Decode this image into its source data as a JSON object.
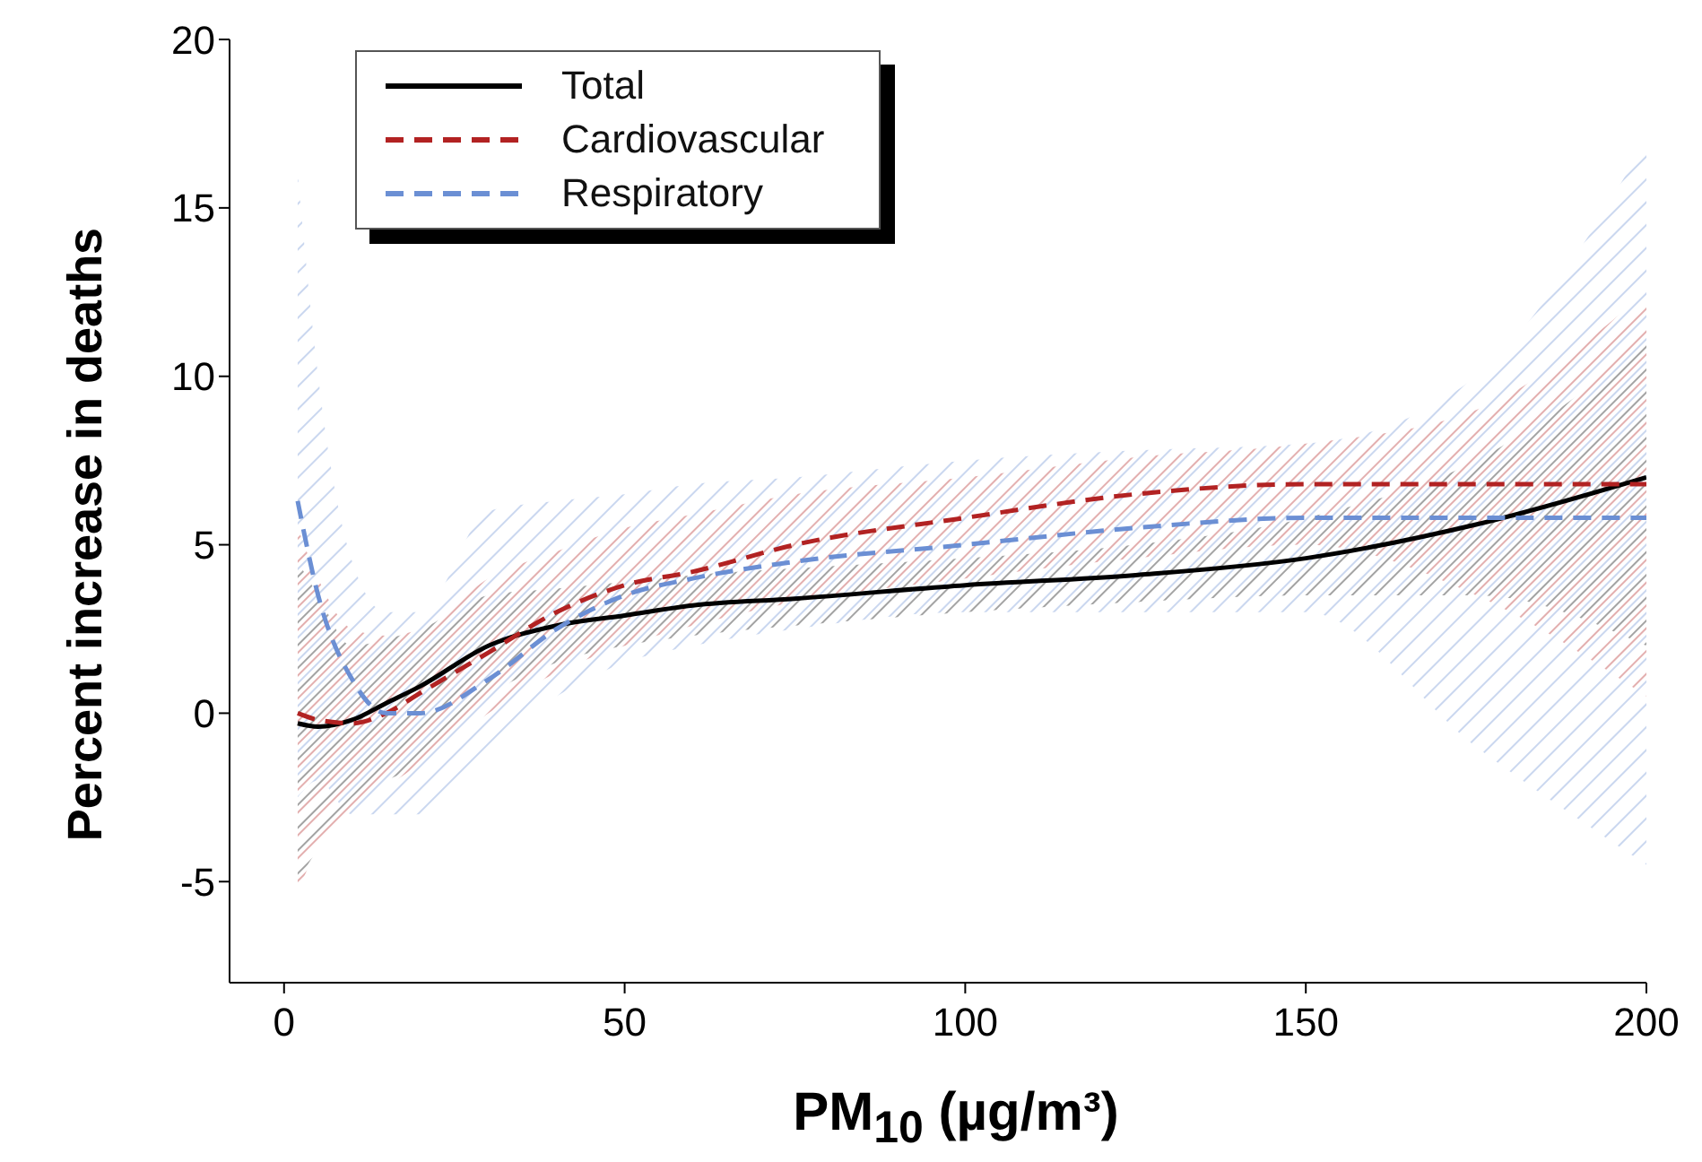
{
  "chart_data": {
    "type": "line",
    "xlabel": "PM$_{10}$ (µg/m³)",
    "ylabel": "Percent increase in deaths",
    "x": [
      2,
      5,
      10,
      15,
      20,
      30,
      40,
      50,
      60,
      75,
      100,
      125,
      150,
      175,
      200
    ],
    "series": [
      {
        "name": "Total",
        "color": "#000000",
        "line_style": "solid",
        "values": [
          -0.3,
          -0.4,
          -0.2,
          0.3,
          0.8,
          2.0,
          2.6,
          2.9,
          3.2,
          3.4,
          3.8,
          4.1,
          4.6,
          5.6,
          7.0
        ],
        "lower": [
          -5,
          -4,
          -2.5,
          -2,
          -1.5,
          0.5,
          1.5,
          2,
          2.3,
          2.6,
          3,
          3.3,
          3.5,
          3.5,
          2
        ],
        "upper": [
          4.5,
          3.5,
          2,
          2.2,
          2.5,
          3.5,
          3.7,
          3.9,
          4.1,
          4.3,
          4.6,
          5,
          5.8,
          7.5,
          11
        ]
      },
      {
        "name": "Cardiovascular",
        "color": "#b22222",
        "line_style": "dashed",
        "values": [
          0.0,
          -0.2,
          -0.3,
          0.0,
          0.6,
          1.8,
          3.0,
          3.8,
          4.2,
          5.0,
          5.8,
          6.5,
          6.8,
          6.8,
          6.8
        ],
        "lower": [
          -5.3,
          -4,
          -3,
          -2.2,
          -1.5,
          0,
          1.2,
          2,
          2.6,
          3.3,
          4,
          4.6,
          5,
          3.5,
          0.5
        ],
        "upper": [
          5.5,
          4,
          2.5,
          2.3,
          2.5,
          4,
          4.8,
          5.5,
          5.9,
          6.5,
          7,
          7.6,
          8,
          9,
          12.5
        ]
      },
      {
        "name": "Respiratory",
        "color": "#6b8fd4",
        "line_style": "dashed",
        "values": [
          6.3,
          3.5,
          1.0,
          0.0,
          0.0,
          1.0,
          2.5,
          3.5,
          4.0,
          4.5,
          5.0,
          5.5,
          5.8,
          5.8,
          5.8
        ],
        "lower": [
          -2.5,
          -2,
          -3,
          -3,
          -3,
          -1,
          0.5,
          1.5,
          2,
          2.5,
          3,
          3,
          3,
          -1,
          -4.5
        ],
        "upper": [
          16,
          10,
          4.5,
          3,
          3,
          6,
          6.3,
          6.5,
          6.8,
          7,
          7.5,
          7.8,
          8,
          10,
          17
        ]
      }
    ],
    "xlim": [
      -8,
      200
    ],
    "xticks": [
      0,
      50,
      100,
      150,
      200
    ],
    "ylim": [
      -8,
      20
    ],
    "yticks": [
      -5,
      0,
      5,
      10,
      15,
      20
    ],
    "grid": false,
    "legend": "top left",
    "marker": "none"
  }
}
